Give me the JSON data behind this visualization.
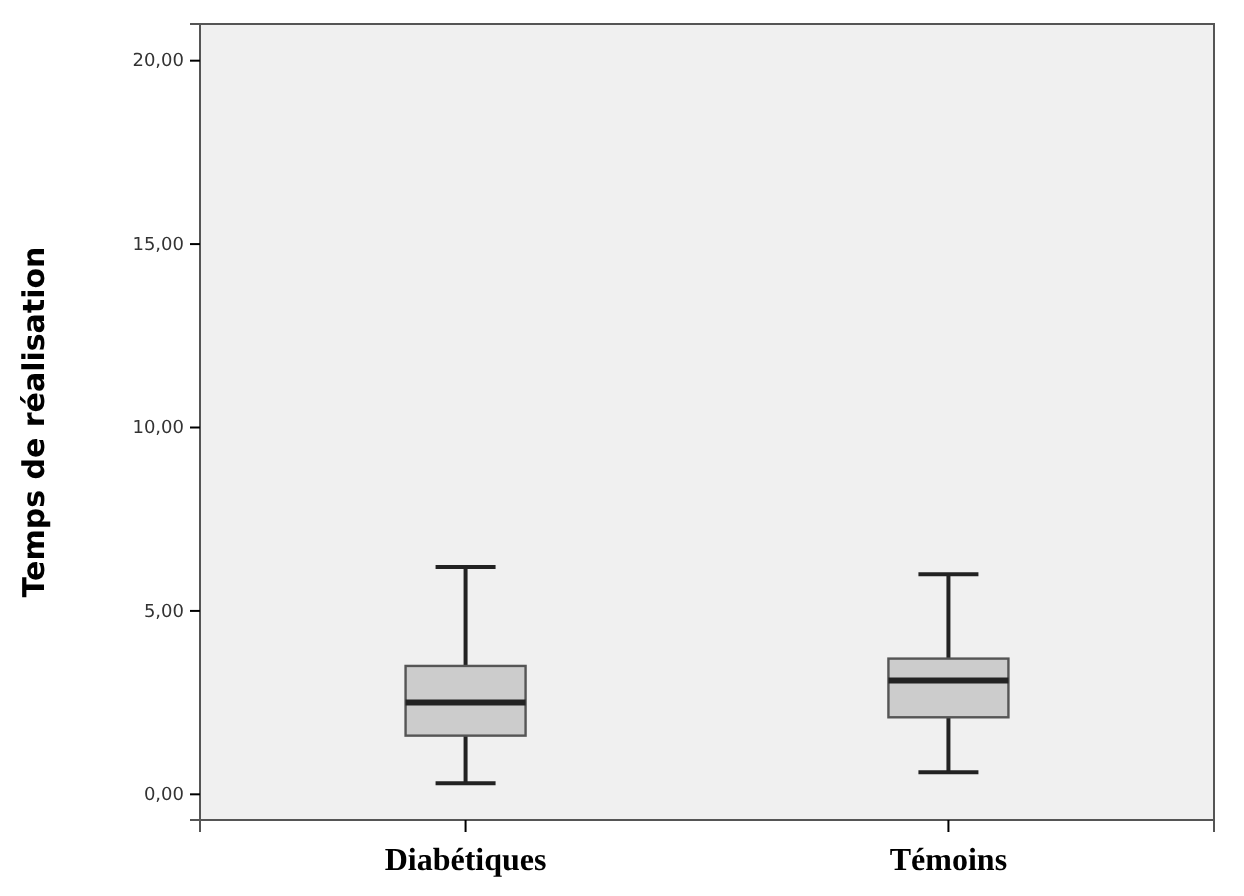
{
  "chart_data": {
    "type": "box",
    "ylabel": "Temps de réalisation",
    "categories": [
      "Diabétiques",
      "Témoins"
    ],
    "boxes": [
      {
        "low": 0.3,
        "q1": 1.6,
        "median": 2.5,
        "q3": 3.5,
        "high": 6.2
      },
      {
        "low": 0.6,
        "q1": 2.1,
        "median": 3.1,
        "q3": 3.7,
        "high": 6.0
      }
    ],
    "color": "#cccccc",
    "ylim": [
      -0.7,
      21
    ],
    "yticks": [
      {
        "value": 0,
        "label": "0,00"
      },
      {
        "value": 5,
        "label": "5,00"
      },
      {
        "value": 10,
        "label": "10,00"
      },
      {
        "value": 15,
        "label": "15,00"
      },
      {
        "value": 20,
        "label": "20,00"
      }
    ],
    "grid": false
  }
}
